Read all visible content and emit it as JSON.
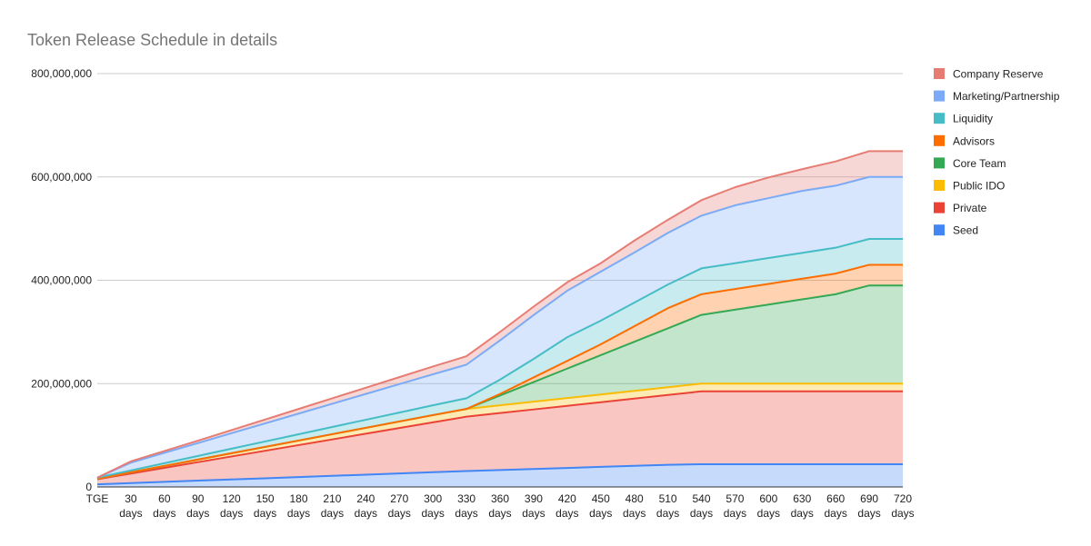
{
  "chart_data": {
    "type": "area",
    "stacked": true,
    "title": "Token Release Schedule in details",
    "xlabel": "",
    "ylabel": "",
    "ylim": [
      0,
      800000000
    ],
    "yticks": [
      {
        "value": 0,
        "label": "0"
      },
      {
        "value": 200000000,
        "label": "200,000,000"
      },
      {
        "value": 400000000,
        "label": "400,000,000"
      },
      {
        "value": 600000000,
        "label": "600,000,000"
      },
      {
        "value": 800000000,
        "label": "800,000,000"
      }
    ],
    "grid": true,
    "legend_position": "right",
    "categories": [
      [
        "TGE"
      ],
      [
        "30",
        "days"
      ],
      [
        "60",
        "days"
      ],
      [
        "90",
        "days"
      ],
      [
        "120",
        "days"
      ],
      [
        "150",
        "days"
      ],
      [
        "180",
        "days"
      ],
      [
        "210",
        "days"
      ],
      [
        "240",
        "days"
      ],
      [
        "270",
        "days"
      ],
      [
        "300",
        "days"
      ],
      [
        "330",
        "days"
      ],
      [
        "360",
        "days"
      ],
      [
        "390",
        "days"
      ],
      [
        "420",
        "days"
      ],
      [
        "450",
        "days"
      ],
      [
        "480",
        "days"
      ],
      [
        "510",
        "days"
      ],
      [
        "540",
        "days"
      ],
      [
        "570",
        "days"
      ],
      [
        "600",
        "days"
      ],
      [
        "630",
        "days"
      ],
      [
        "660",
        "days"
      ],
      [
        "690",
        "days"
      ],
      [
        "720",
        "days"
      ]
    ],
    "series": [
      {
        "name": "Seed",
        "color": "#4285f4",
        "values": [
          5000000,
          7400000,
          9800000,
          12200000,
          14500000,
          16800000,
          19200000,
          21500000,
          23800000,
          26200000,
          28500000,
          30800000,
          32800000,
          34800000,
          36800000,
          38800000,
          40800000,
          42800000,
          44000000,
          44000000,
          44000000,
          44000000,
          44000000,
          44000000,
          44000000
        ]
      },
      {
        "name": "Private",
        "color": "#ea4335",
        "values": [
          10000000,
          18600000,
          27200000,
          35800000,
          44500000,
          53200000,
          61800000,
          70500000,
          79200000,
          87800000,
          96500000,
          105200000,
          110200000,
          115200000,
          120200000,
          125200000,
          130200000,
          135200000,
          141000000,
          141000000,
          141000000,
          141000000,
          141000000,
          141000000,
          141000000
        ]
      },
      {
        "name": "Public IDO",
        "color": "#fbbc04",
        "values": [
          1000000,
          2300000,
          3600000,
          4900000,
          6200000,
          7500000,
          8800000,
          10100000,
          11400000,
          12700000,
          14000000,
          15000000,
          15000000,
          15000000,
          15000000,
          15000000,
          15000000,
          15000000,
          15000000,
          15000000,
          15000000,
          15000000,
          15000000,
          15000000,
          15000000
        ]
      },
      {
        "name": "Core Team",
        "color": "#34a853",
        "values": [
          0,
          0,
          0,
          0,
          0,
          0,
          0,
          0,
          0,
          0,
          0,
          0,
          19000000,
          38000000,
          57000000,
          76000000,
          95000000,
          114000000,
          133000000,
          143000000,
          153000000,
          163000000,
          173000000,
          190000000,
          190000000
        ]
      },
      {
        "name": "Advisors",
        "color": "#ff6d01",
        "values": [
          0,
          0,
          0,
          0,
          0,
          0,
          0,
          0,
          0,
          0,
          0,
          0,
          3000000,
          9000000,
          15000000,
          21000000,
          30000000,
          39000000,
          40000000,
          40000000,
          40000000,
          40000000,
          40000000,
          40000000,
          40000000
        ]
      },
      {
        "name": "Liquidity",
        "color": "#46bdc6",
        "values": [
          2000000,
          3700000,
          5400000,
          7100000,
          8800000,
          10500000,
          12200000,
          13900000,
          15600000,
          17300000,
          19000000,
          20700000,
          27700000,
          35700000,
          45700000,
          45700000,
          45700000,
          45700000,
          50000000,
          50000000,
          50000000,
          50000000,
          50000000,
          50000000,
          50000000
        ]
      },
      {
        "name": "Marketing/Partnership",
        "color": "#7baaf7",
        "values": [
          0,
          15000000,
          20000000,
          25000000,
          30000000,
          35000000,
          40000000,
          45000000,
          50000000,
          55000000,
          60000000,
          65000000,
          76000000,
          85000000,
          90000000,
          95000000,
          97000000,
          100000000,
          102000000,
          112000000,
          116000000,
          120000000,
          120000000,
          120000000,
          120000000
        ]
      },
      {
        "name": "Company Reserve",
        "color": "#e67c73",
        "values": [
          0,
          2500000,
          3500000,
          4500000,
          6000000,
          7500000,
          9000000,
          10500000,
          12000000,
          13500000,
          15000000,
          16300000,
          16300000,
          16300000,
          16300000,
          16300000,
          23000000,
          25300000,
          30000000,
          35000000,
          40000000,
          42000000,
          47000000,
          50000000,
          50000000
        ]
      }
    ]
  }
}
